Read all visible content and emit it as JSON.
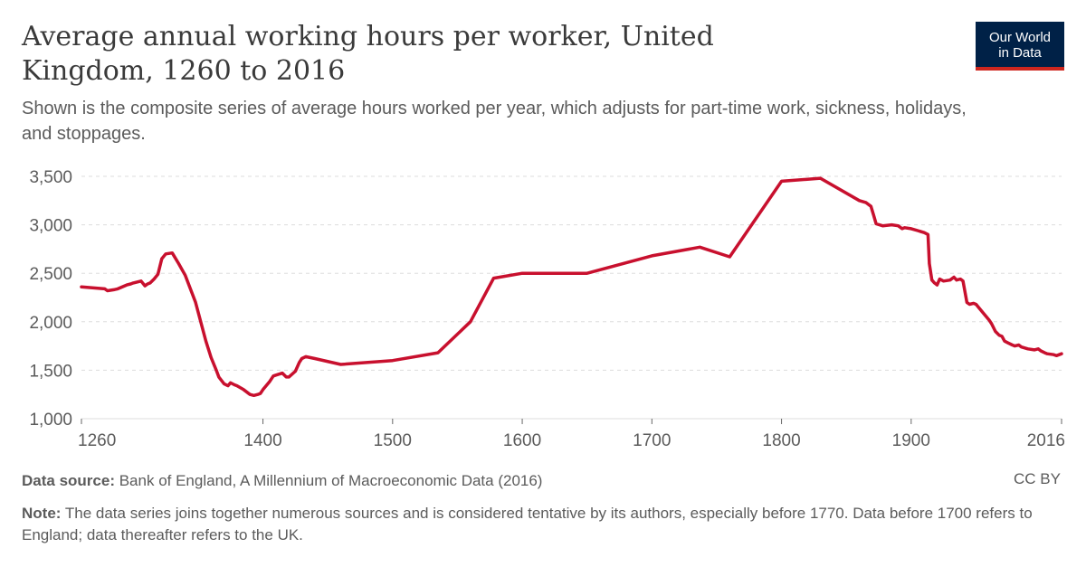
{
  "header": {
    "title": "Average annual working hours per worker, United Kingdom, 1260 to 2016",
    "subtitle": "Shown is the composite series of average hours worked per year, which adjusts for part-time work, sickness, holidays, and stoppages.",
    "logo_line1": "Our World",
    "logo_line2": "in Data"
  },
  "footer": {
    "source_label": "Data source:",
    "source_text": "Bank of England, A Millennium of Macroeconomic Data (2016)",
    "license": "CC BY",
    "note_label": "Note:",
    "note_text": "The data series joins together numerous sources and is considered tentative by its authors, especially before 1770. Data before 1700 refers to England; data thereafter refers to the UK."
  },
  "colors": {
    "line": "#c8102e",
    "grid": "#dddddd",
    "text": "#5b5b5b"
  },
  "chart_data": {
    "type": "line",
    "title": "Average annual working hours per worker, United Kingdom, 1260 to 2016",
    "xlabel": "",
    "ylabel": "",
    "xlim": [
      1260,
      2016
    ],
    "ylim": [
      1000,
      3500
    ],
    "grid": true,
    "x_ticks": [
      1260,
      1400,
      1500,
      1600,
      1700,
      1800,
      1900,
      2016
    ],
    "y_ticks": [
      1000,
      1500,
      2000,
      2500,
      3000,
      3500
    ],
    "y_tick_labels": [
      "1,000",
      "1,500",
      "2,000",
      "2,500",
      "3,000",
      "3,500"
    ],
    "series": [
      {
        "name": "",
        "x": [
          1260,
          1278,
          1280,
          1285,
          1288,
          1295,
          1298,
          1300,
          1306,
          1309,
          1311,
          1313,
          1316,
          1319,
          1322,
          1325,
          1330,
          1335,
          1340,
          1348,
          1352,
          1356,
          1360,
          1364,
          1366,
          1370,
          1373,
          1375,
          1378,
          1380,
          1385,
          1390,
          1393,
          1396,
          1398,
          1400,
          1405,
          1408,
          1410,
          1415,
          1418,
          1420,
          1425,
          1428,
          1430,
          1433,
          1440,
          1460,
          1500,
          1535,
          1560,
          1578,
          1600,
          1650,
          1700,
          1737,
          1760,
          1800,
          1830,
          1860,
          1865,
          1869,
          1871,
          1873,
          1878,
          1885,
          1890,
          1893,
          1895,
          1900,
          1905,
          1910,
          1913,
          1914,
          1916,
          1918,
          1920,
          1922,
          1925,
          1930,
          1933,
          1935,
          1938,
          1940,
          1943,
          1945,
          1948,
          1950,
          1955,
          1960,
          1962,
          1965,
          1968,
          1970,
          1972,
          1975,
          1978,
          1980,
          1983,
          1985,
          1990,
          1995,
          1998,
          2000,
          2003,
          2005,
          2010,
          2012,
          2016
        ],
        "values": [
          2360,
          2340,
          2320,
          2330,
          2340,
          2380,
          2390,
          2400,
          2420,
          2370,
          2390,
          2400,
          2440,
          2490,
          2650,
          2700,
          2710,
          2600,
          2480,
          2200,
          2000,
          1800,
          1630,
          1500,
          1430,
          1360,
          1340,
          1370,
          1350,
          1340,
          1300,
          1250,
          1240,
          1250,
          1260,
          1300,
          1380,
          1440,
          1450,
          1470,
          1430,
          1430,
          1490,
          1580,
          1620,
          1640,
          1620,
          1560,
          1600,
          1680,
          2000,
          2450,
          2500,
          2500,
          2680,
          2770,
          2670,
          3450,
          3480,
          3250,
          3230,
          3190,
          3100,
          3010,
          2990,
          3000,
          2990,
          2960,
          2970,
          2960,
          2940,
          2920,
          2900,
          2600,
          2430,
          2400,
          2380,
          2440,
          2420,
          2430,
          2460,
          2430,
          2440,
          2420,
          2200,
          2180,
          2190,
          2180,
          2100,
          2020,
          1980,
          1900,
          1860,
          1850,
          1800,
          1780,
          1760,
          1750,
          1760,
          1740,
          1720,
          1710,
          1720,
          1700,
          1680,
          1670,
          1660,
          1650,
          1670
        ]
      }
    ]
  }
}
